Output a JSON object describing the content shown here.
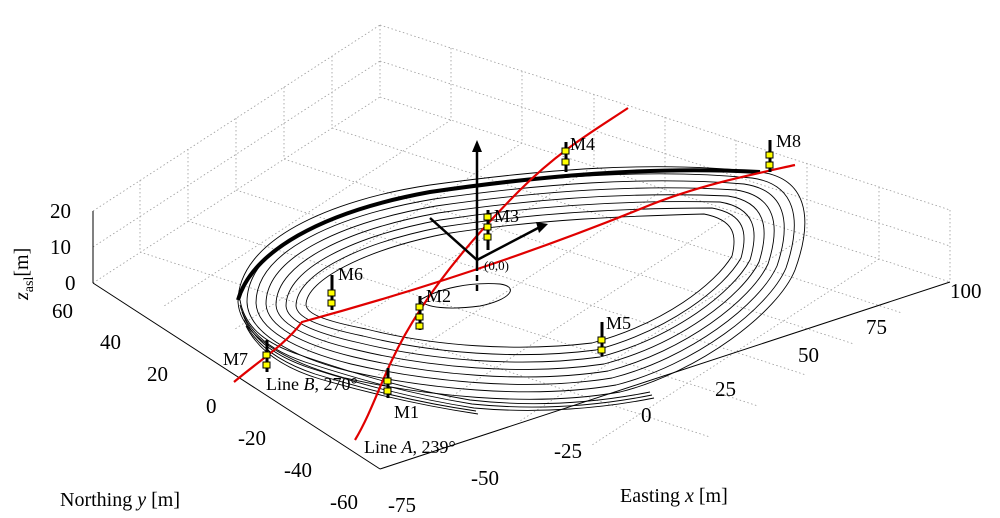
{
  "chart_data": {
    "type": "3d-surface-contour",
    "title": "",
    "axes": {
      "x": {
        "label_prefix": "Easting ",
        "label_var": "x",
        "label_unit": " [m]",
        "ticks": [
          "-75",
          "-50",
          "-25",
          "0",
          "25",
          "50",
          "75",
          "100"
        ]
      },
      "y": {
        "label_prefix": "Northing ",
        "label_var": "y",
        "label_unit": " [m]",
        "ticks": [
          "-60",
          "-40",
          "-20",
          "0",
          "20",
          "40",
          "60"
        ]
      },
      "z": {
        "label_main": "z",
        "label_sub": "asl",
        "label_unit": "[m]",
        "ticks": [
          "0",
          "10",
          "20"
        ]
      }
    },
    "grid": true,
    "origin_label": "(0,0)",
    "sensors": [
      {
        "name": "M1"
      },
      {
        "name": "M2"
      },
      {
        "name": "M3"
      },
      {
        "name": "M4"
      },
      {
        "name": "M5"
      },
      {
        "name": "M6"
      },
      {
        "name": "M7"
      },
      {
        "name": "M8"
      }
    ],
    "profile_lines": [
      {
        "prefix": "Line ",
        "var": "A",
        "suffix": ", 239°"
      },
      {
        "prefix": "Line ",
        "var": "B",
        "suffix": ", 270°"
      }
    ],
    "colors": {
      "profile_line": "#e00000",
      "contour": "#000000",
      "sensor_marker": "#ffff00",
      "grid": "#9a9a9a"
    }
  }
}
